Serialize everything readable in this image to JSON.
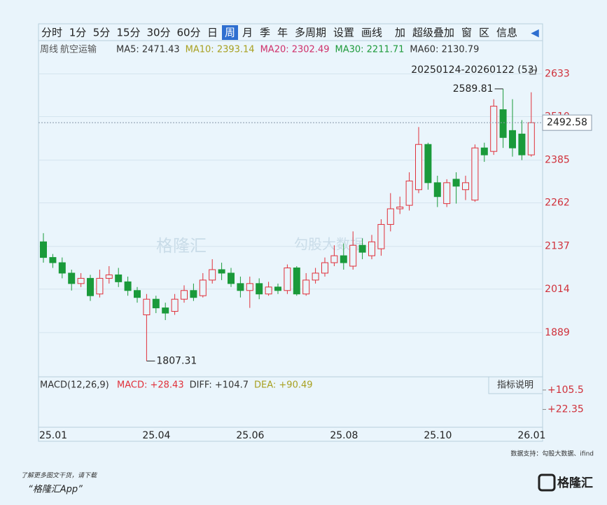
{
  "toolbar": {
    "items": [
      "分时",
      "1分",
      "5分",
      "15分",
      "30分",
      "60分",
      "日",
      "周",
      "月",
      "季",
      "年",
      "多周期",
      "设置",
      "画线",
      "加",
      "超级叠加",
      "窗",
      "区",
      "信息"
    ],
    "selected": 7
  },
  "chart_data": {
    "type": "candlestick",
    "period": "周线",
    "name": "航空运输",
    "ma_labels": [
      {
        "text": "MA5: 2471.43",
        "color": "#333333"
      },
      {
        "text": "MA10: 2393.14",
        "color": "#a8a020"
      },
      {
        "text": "MA20: 2302.49",
        "color": "#d0306a"
      },
      {
        "text": "MA30: 2211.71",
        "color": "#1e9a3a"
      },
      {
        "text": "MA60: 2130.79",
        "color": "#333333"
      }
    ],
    "range_label": "20250124-20260122 (53)",
    "categories": [
      "25.01",
      null,
      null,
      null,
      null,
      null,
      null,
      null,
      null,
      null,
      null,
      "25.04",
      null,
      null,
      null,
      null,
      null,
      null,
      null,
      null,
      null,
      "25.06",
      null,
      null,
      null,
      null,
      null,
      null,
      null,
      null,
      null,
      "25.08",
      null,
      null,
      null,
      null,
      null,
      null,
      null,
      null,
      null,
      "25.10",
      null,
      null,
      null,
      null,
      null,
      null,
      null,
      null,
      null,
      "26.01",
      null
    ],
    "open": [
      2150,
      2105,
      2090,
      2060,
      2030,
      2045,
      2000,
      2045,
      2055,
      2035,
      2010,
      1940,
      1985,
      1960,
      1950,
      1985,
      2010,
      1995,
      2040,
      2070,
      2060,
      2030,
      2010,
      2030,
      2000,
      2020,
      2010,
      2075,
      2000,
      2040,
      2060,
      2090,
      2110,
      2080,
      2140,
      2110,
      2130,
      2200,
      2245,
      2255,
      2300,
      2430,
      2320,
      2260,
      2330,
      2300,
      2270,
      2420,
      2410,
      2530,
      2470,
      2460,
      2400
    ],
    "close": [
      2105,
      2090,
      2060,
      2030,
      2045,
      1995,
      2045,
      2055,
      2035,
      2010,
      1990,
      1985,
      1960,
      1945,
      1985,
      2010,
      1990,
      2040,
      2070,
      2060,
      2030,
      2010,
      2030,
      2000,
      2020,
      2010,
      2075,
      2000,
      2040,
      2060,
      2090,
      2110,
      2090,
      2140,
      2120,
      2150,
      2200,
      2245,
      2250,
      2325,
      2430,
      2320,
      2280,
      2320,
      2310,
      2320,
      2420,
      2400,
      2540,
      2450,
      2420,
      2400,
      2492.58
    ],
    "high": [
      2175,
      2115,
      2105,
      2070,
      2060,
      2055,
      2070,
      2080,
      2075,
      2050,
      2020,
      2000,
      1995,
      1975,
      2000,
      2025,
      2030,
      2060,
      2100,
      2090,
      2075,
      2050,
      2050,
      2045,
      2035,
      2030,
      2085,
      2080,
      2060,
      2075,
      2105,
      2140,
      2145,
      2180,
      2160,
      2170,
      2215,
      2290,
      2280,
      2350,
      2480,
      2435,
      2340,
      2330,
      2350,
      2340,
      2430,
      2435,
      2560,
      2589.81,
      2560,
      2500,
      2580
    ],
    "low": [
      2090,
      2075,
      2045,
      2010,
      2020,
      1980,
      1990,
      2030,
      2020,
      1995,
      1975,
      1807.31,
      1945,
      1925,
      1940,
      1975,
      1980,
      1990,
      2030,
      2040,
      2020,
      1990,
      1960,
      1985,
      1995,
      2000,
      2000,
      1995,
      1995,
      2030,
      2050,
      2080,
      2070,
      2070,
      2100,
      2100,
      2110,
      2180,
      2230,
      2240,
      2290,
      2300,
      2250,
      2250,
      2260,
      2270,
      2265,
      2380,
      2400,
      2420,
      2395,
      2385,
      2395
    ],
    "up_color": "#e0303a",
    "down_color": "#1a9a3a",
    "ylim": [
      1790,
      2650
    ],
    "yticks": [
      1889,
      2014,
      2137,
      2262,
      2385,
      2510,
      2633
    ],
    "grid": true,
    "macd": {
      "label": "MACD(12,26,9)",
      "items": [
        {
          "text": "MACD: +28.43",
          "color": "#e0303a"
        },
        {
          "text": "DIFF: +104.7",
          "color": "#333333"
        },
        {
          "text": "DEA: +90.49",
          "color": "#a8a020"
        }
      ],
      "ylim": [
        -54,
        162
      ],
      "yticks": [
        {
          "value": 105.5,
          "label": "+105.5"
        },
        {
          "value": 22.35,
          "label": "+22.35"
        }
      ],
      "button": "指标说明"
    }
  },
  "footer": {
    "source": "数据支持：勾股大数据、ifind",
    "promo": "了解更多图文干货，请下载",
    "app": "“格隆汇App”",
    "logo": "格隆汇"
  },
  "watermark": {
    "left": "格隆汇",
    "right": "勾股大数据"
  }
}
